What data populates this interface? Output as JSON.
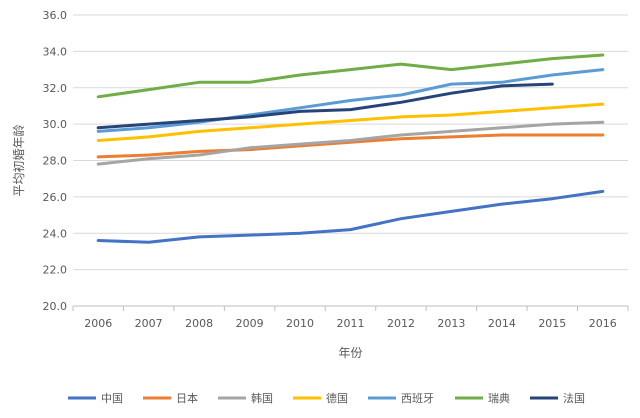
{
  "chart_data": {
    "type": "line",
    "title": "",
    "xlabel": "年份",
    "ylabel": "平均初婚年龄",
    "x": [
      "2006",
      "2007",
      "2008",
      "2009",
      "2010",
      "2011",
      "2012",
      "2013",
      "2014",
      "2015",
      "2016"
    ],
    "ylim": [
      20.0,
      36.0
    ],
    "yticks": [
      "20.0",
      "22.0",
      "24.0",
      "26.0",
      "28.0",
      "30.0",
      "32.0",
      "34.0",
      "36.0"
    ],
    "grid": "horizontal",
    "legend": "bottom",
    "series": [
      {
        "name": "中国",
        "color": "#4472C4",
        "values": [
          23.6,
          23.5,
          23.8,
          23.9,
          24.0,
          24.2,
          24.8,
          25.2,
          25.6,
          25.9,
          26.3
        ]
      },
      {
        "name": "日本",
        "color": "#ED7D31",
        "values": [
          28.2,
          28.3,
          28.5,
          28.6,
          28.8,
          29.0,
          29.2,
          29.3,
          29.4,
          29.4,
          29.4
        ]
      },
      {
        "name": "韩国",
        "color": "#A5A5A5",
        "values": [
          27.8,
          28.1,
          28.3,
          28.7,
          28.9,
          29.1,
          29.4,
          29.6,
          29.8,
          30.0,
          30.1
        ]
      },
      {
        "name": "德国",
        "color": "#FFC000",
        "values": [
          29.1,
          29.3,
          29.6,
          29.8,
          30.0,
          30.2,
          30.4,
          30.5,
          30.7,
          30.9,
          31.1
        ]
      },
      {
        "name": "西班牙",
        "color": "#5B9BD5",
        "values": [
          29.6,
          29.8,
          30.1,
          30.5,
          30.9,
          31.3,
          31.6,
          32.2,
          32.3,
          32.7,
          33.0
        ]
      },
      {
        "name": "瑞典",
        "color": "#70AD47",
        "values": [
          31.5,
          31.9,
          32.3,
          32.3,
          32.7,
          33.0,
          33.3,
          33.0,
          33.3,
          33.6,
          33.8
        ]
      },
      {
        "name": "法国",
        "color": "#264478",
        "values": [
          29.8,
          30.0,
          30.2,
          30.4,
          30.7,
          30.8,
          31.2,
          31.7,
          32.1,
          32.2,
          null
        ]
      }
    ]
  }
}
